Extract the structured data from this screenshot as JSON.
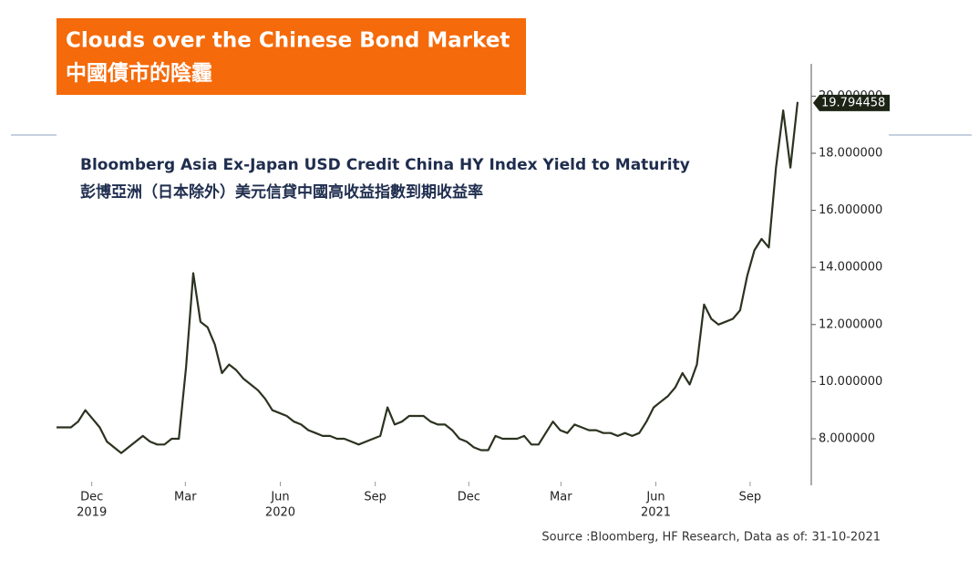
{
  "header": {
    "title": "Clouds over the Chinese Bond Market",
    "subtitle": "中國債市的陰霾"
  },
  "chart_data": {
    "type": "line",
    "title": "Bloomberg Asia Ex-Japan USD Credit China HY Index Yield to Maturity",
    "subtitle": "彭博亞洲（日本除外）美元信貸中國高收益指數到期收益率",
    "source": "Source :Bloomberg, HF Research, Data as of: 31-10-2021",
    "color": "#2b3320",
    "values": [
      8.4,
      8.4,
      8.4,
      8.6,
      9.0,
      8.7,
      8.4,
      7.9,
      7.7,
      7.5,
      7.7,
      7.9,
      8.1,
      7.9,
      7.8,
      7.8,
      8.0,
      8.0,
      10.5,
      13.8,
      12.1,
      11.9,
      11.3,
      10.3,
      10.6,
      10.4,
      10.1,
      9.9,
      9.7,
      9.4,
      9.0,
      8.9,
      8.8,
      8.6,
      8.5,
      8.3,
      8.2,
      8.1,
      8.1,
      8.0,
      8.0,
      7.9,
      7.8,
      7.9,
      8.0,
      8.1,
      9.1,
      8.5,
      8.6,
      8.8,
      8.8,
      8.8,
      8.6,
      8.5,
      8.5,
      8.3,
      8.0,
      7.9,
      7.7,
      7.6,
      7.6,
      8.1,
      8.0,
      8.0,
      8.0,
      8.1,
      7.8,
      7.8,
      8.2,
      8.6,
      8.3,
      8.2,
      8.5,
      8.4,
      8.3,
      8.3,
      8.2,
      8.2,
      8.1,
      8.2,
      8.1,
      8.2,
      8.6,
      9.1,
      9.3,
      9.5,
      9.8,
      10.3,
      9.9,
      10.6,
      12.7,
      12.2,
      12.0,
      12.1,
      12.2,
      12.5,
      13.7,
      14.6,
      15.0,
      14.7,
      17.5,
      19.5,
      17.5,
      19.794458
    ],
    "xlim": [
      0,
      103
    ],
    "xticks": [
      {
        "value": 4.9,
        "label": "Dec",
        "year": "2019"
      },
      {
        "value": 17.9,
        "label": "Mar"
      },
      {
        "value": 31.1,
        "label": "Jun",
        "year": "2020"
      },
      {
        "value": 44.3,
        "label": "Sep"
      },
      {
        "value": 57.3,
        "label": "Dec"
      },
      {
        "value": 70.1,
        "label": "Mar"
      },
      {
        "value": 83.3,
        "label": "Jun",
        "year": "2021"
      },
      {
        "value": 96.4,
        "label": "Sep"
      }
    ],
    "ylim": [
      6.4,
      21.1
    ],
    "yticks": [
      {
        "value": 8,
        "label": "8.000000"
      },
      {
        "value": 10,
        "label": "10.000000"
      },
      {
        "value": 12,
        "label": "12.000000"
      },
      {
        "value": 14,
        "label": "14.000000"
      },
      {
        "value": 16,
        "label": "16.000000"
      },
      {
        "value": 18,
        "label": "18.000000"
      },
      {
        "value": 20,
        "label": "20.000000"
      }
    ],
    "last_value_label": true
  }
}
